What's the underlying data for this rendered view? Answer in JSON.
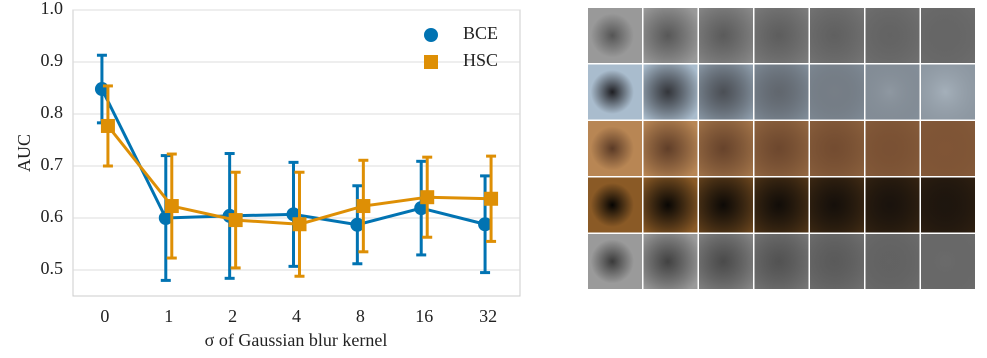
{
  "chart_data": {
    "type": "line",
    "x_label": "σ of Gaussian blur kernel",
    "y_label": "AUC",
    "categories": [
      "0",
      "1",
      "2",
      "4",
      "8",
      "16",
      "32"
    ],
    "series": [
      {
        "name": "BCE",
        "color": "#0173b2",
        "marker": "circle",
        "values": [
          0.848,
          0.6,
          0.604,
          0.607,
          0.587,
          0.619,
          0.588
        ],
        "errors": [
          0.065,
          0.12,
          0.12,
          0.1,
          0.075,
          0.09,
          0.093
        ]
      },
      {
        "name": "HSC",
        "color": "#de8f05",
        "marker": "square",
        "values": [
          0.777,
          0.623,
          0.596,
          0.588,
          0.623,
          0.64,
          0.637
        ],
        "errors": [
          0.077,
          0.1,
          0.092,
          0.1,
          0.088,
          0.077,
          0.082
        ]
      }
    ],
    "ylim": [
      0.45,
      1.0
    ],
    "yticks": [
      {
        "value": 0.5,
        "label": "0.5"
      },
      {
        "value": 0.6,
        "label": "0.6"
      },
      {
        "value": 0.7,
        "label": "0.7"
      },
      {
        "value": 0.8,
        "label": "0.8"
      },
      {
        "value": 0.9,
        "label": "0.9"
      },
      {
        "value": 1.0,
        "label": "1.0"
      }
    ],
    "grid": true,
    "legend_position": "upper right"
  }
}
